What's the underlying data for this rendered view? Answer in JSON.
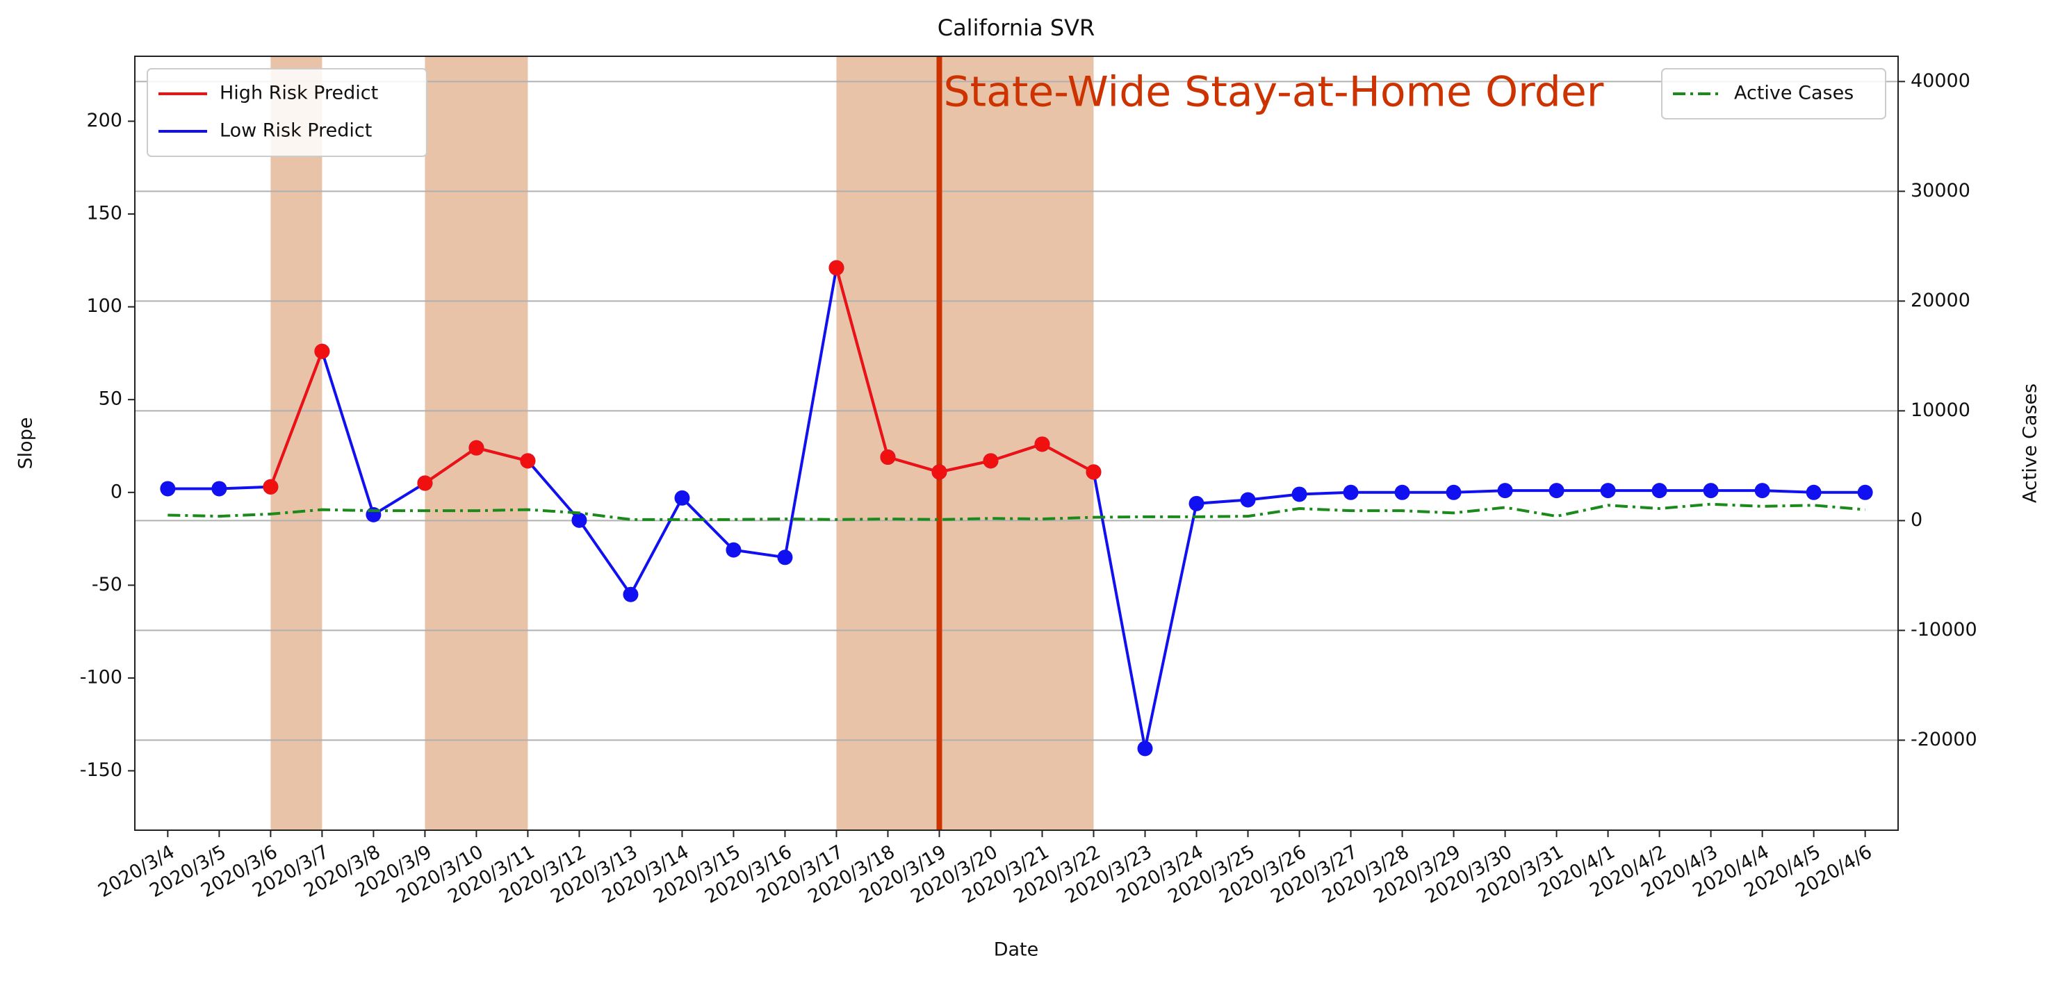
{
  "chart_data": {
    "type": "line",
    "title": "California SVR",
    "xlabel": "Date",
    "ylabel": "Slope",
    "y2label": "Active Cases",
    "categories": [
      "2020/3/4",
      "2020/3/5",
      "2020/3/6",
      "2020/3/7",
      "2020/3/8",
      "2020/3/9",
      "2020/3/10",
      "2020/3/11",
      "2020/3/12",
      "2020/3/13",
      "2020/3/14",
      "2020/3/15",
      "2020/3/16",
      "2020/3/17",
      "2020/3/18",
      "2020/3/19",
      "2020/3/20",
      "2020/3/21",
      "2020/3/22",
      "2020/3/23",
      "2020/3/24",
      "2020/3/25",
      "2020/3/26",
      "2020/3/27",
      "2020/3/28",
      "2020/3/29",
      "2020/3/30",
      "2020/3/31",
      "2020/4/1",
      "2020/4/2",
      "2020/4/3",
      "2020/4/4",
      "2020/4/5",
      "2020/4/6"
    ],
    "series": [
      {
        "name": "Low Risk Predict",
        "color": "#1010f0",
        "marker": true,
        "linestyle": "solid",
        "values": [
          2,
          2,
          3,
          76,
          -12,
          5,
          24,
          17,
          -15,
          -55,
          -3,
          -31,
          -35,
          121,
          19,
          11,
          17,
          26,
          11,
          -138,
          -6,
          -4,
          -1,
          0,
          0,
          0,
          1,
          1,
          1,
          1,
          1,
          1,
          0,
          0
        ]
      },
      {
        "name": "High Risk Predict",
        "color": "#f01010",
        "marker": true,
        "linestyle": "solid",
        "values": [
          null,
          null,
          3,
          76,
          null,
          5,
          24,
          17,
          null,
          null,
          null,
          null,
          null,
          121,
          19,
          11,
          17,
          26,
          11,
          null,
          null,
          null,
          null,
          null,
          null,
          null,
          null,
          null,
          null,
          null,
          null,
          null,
          null,
          null
        ]
      },
      {
        "name": "Active Cases",
        "color": "#1a8a1a",
        "marker": false,
        "linestyle": "dashdot",
        "axis": "y2",
        "values": [
          500,
          400,
          600,
          1000,
          900,
          900,
          900,
          1000,
          700,
          100,
          100,
          100,
          150,
          100,
          150,
          100,
          200,
          150,
          300,
          350,
          350,
          400,
          1100,
          900,
          900,
          700,
          1200,
          400,
          1400,
          1100,
          1500,
          1300,
          1400,
          1000
        ]
      }
    ],
    "legend": "upper left",
    "legend2": "upper right",
    "legend_order": [
      1,
      0
    ],
    "spans": [
      {
        "start": "2020/3/6",
        "end": "2020/3/7",
        "color": "#e8c3a8"
      },
      {
        "start": "2020/3/9",
        "end": "2020/3/11",
        "color": "#e8c3a8"
      },
      {
        "start": "2020/3/17",
        "end": "2020/3/22",
        "color": "#e8c3a8"
      }
    ],
    "annotation": {
      "text": "State-Wide Stay-at-Home Order",
      "x": "2020/3/19",
      "color": "#cc3300"
    },
    "ylim": [
      -182,
      235
    ],
    "yticks": [
      -150,
      -100,
      -50,
      0,
      50,
      100,
      150,
      200
    ],
    "y2lim": [
      -28200,
      42300
    ],
    "y2ticks": [
      -20000,
      -10000,
      0,
      10000,
      20000,
      30000,
      40000
    ],
    "grid": "y2"
  }
}
